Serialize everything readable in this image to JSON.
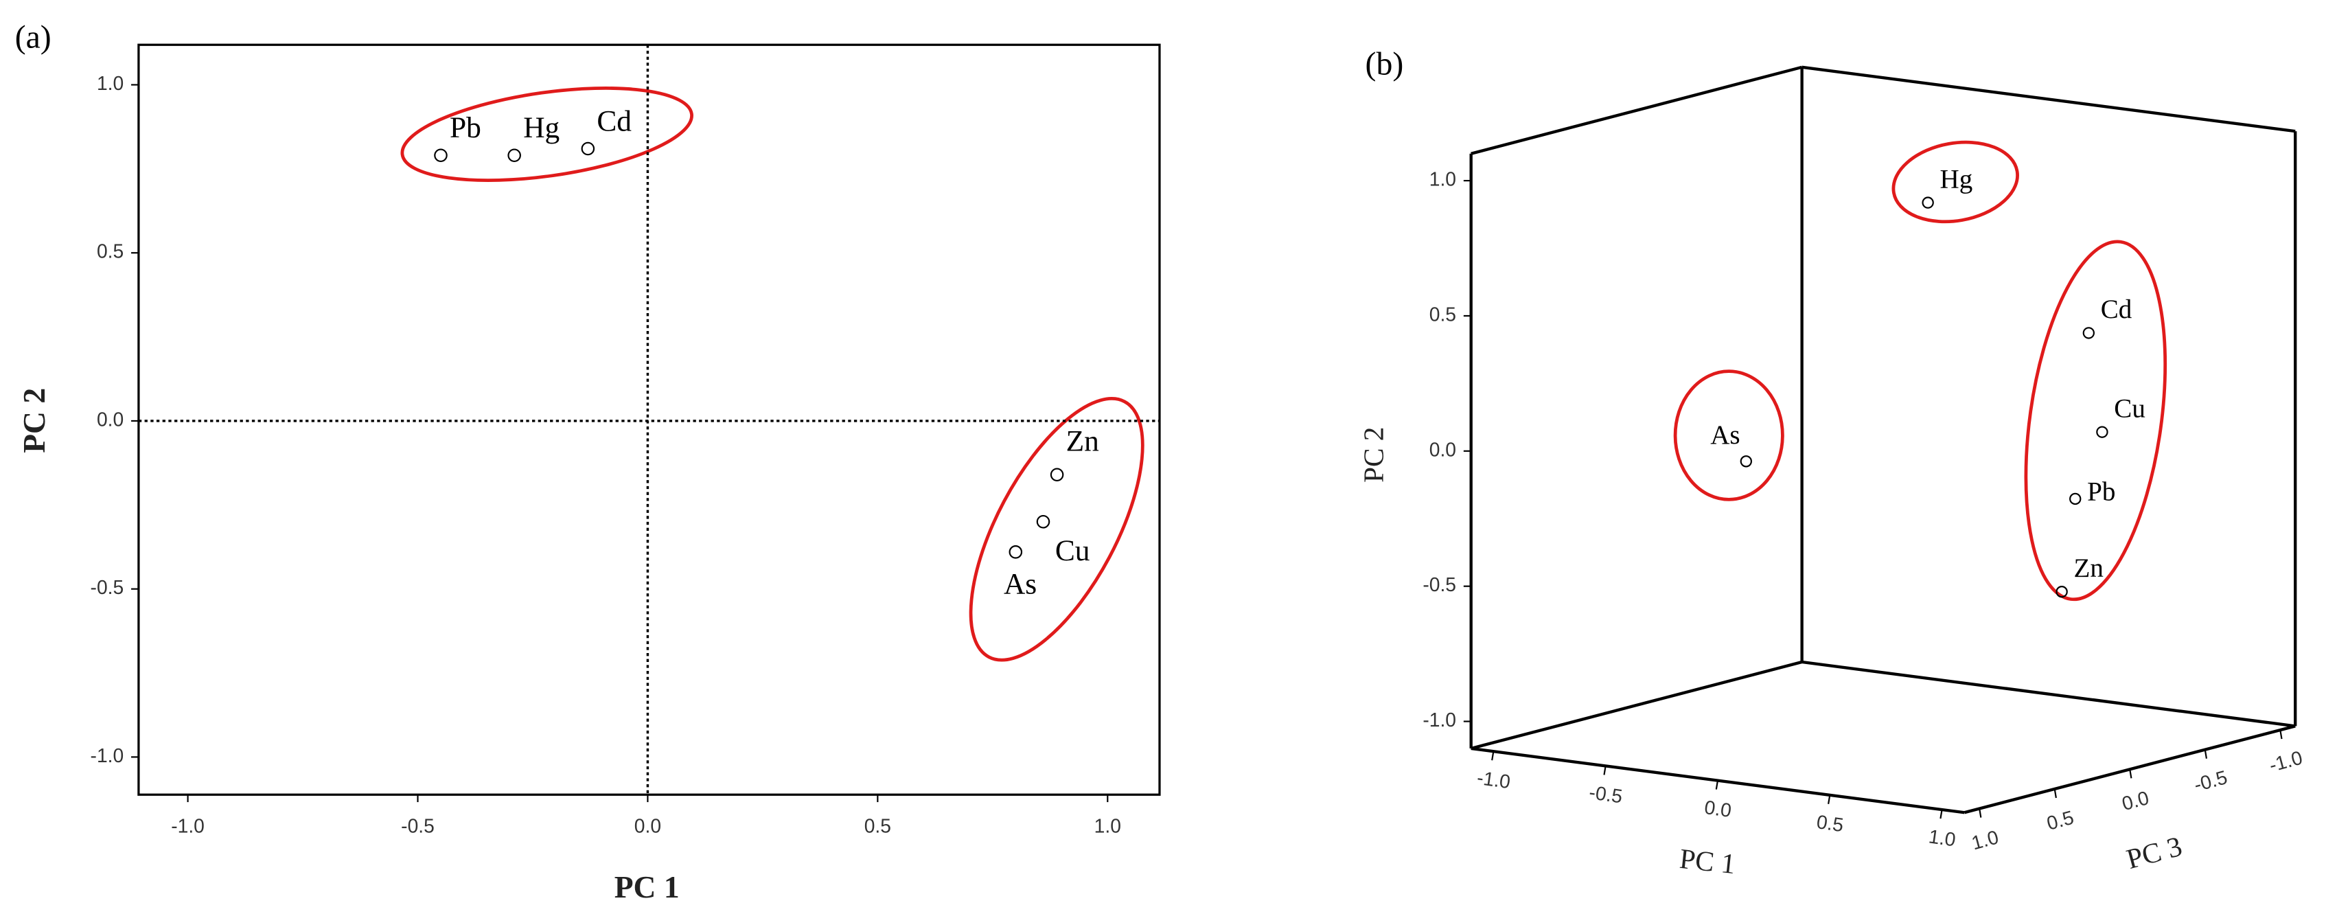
{
  "chart_data": [
    {
      "type": "scatter",
      "panel_label": "(a)",
      "x_label": "PC 1",
      "y_label": "PC 2",
      "labels": [
        "Pb",
        "Hg",
        "Cd",
        "Zn",
        "Cu",
        "As"
      ],
      "x": [
        -0.45,
        -0.29,
        -0.13,
        0.89,
        0.86,
        0.8
      ],
      "y": [
        0.79,
        0.79,
        0.81,
        -0.16,
        -0.3,
        -0.39
      ],
      "xlim": [
        -1.107,
        1.113
      ],
      "ylim": [
        -1.112,
        1.119
      ],
      "xticks": [
        {
          "value": -1,
          "label": "-1.0"
        },
        {
          "value": -0.5,
          "label": "-0.5"
        },
        {
          "value": 0,
          "label": "0.0"
        },
        {
          "value": 0.5,
          "label": "0.5"
        },
        {
          "value": 1,
          "label": "1.0"
        }
      ],
      "yticks": [
        {
          "value": -1,
          "label": "-1.0"
        },
        {
          "value": -0.5,
          "label": "-0.5"
        },
        {
          "value": 0,
          "label": "0.0"
        },
        {
          "value": 0.5,
          "label": "0.5"
        },
        {
          "value": 1,
          "label": "1.0"
        }
      ],
      "zero_lines": true,
      "marker_color": "#000000"
    },
    {
      "type": "scatter3d",
      "panel_label": "(b)",
      "x_label": "PC 1",
      "y_label": "PC 2",
      "z_label": "PC 3",
      "labels": [
        "Hg",
        "Cd",
        "Cu",
        "Pb",
        "Zn",
        "As"
      ],
      "x": [
        -0.29,
        0.38,
        0.44,
        0.32,
        0.26,
        -0.41
      ],
      "y": [
        0.74,
        0.32,
        -0.04,
        -0.3,
        -0.65,
        -0.08
      ],
      "z": [
        -0.73,
        -0.8,
        -0.8,
        -0.8,
        -0.8,
        0.3
      ],
      "xlim": [
        -1.1,
        1.1
      ],
      "ylim": [
        -1.1,
        1.1
      ],
      "zlim": [
        -1.1,
        1.1
      ],
      "xticks": [
        {
          "value": -1,
          "label": "-1.0"
        },
        {
          "value": -0.5,
          "label": "-0.5"
        },
        {
          "value": 0,
          "label": "0.0"
        },
        {
          "value": 0.5,
          "label": "0.5"
        },
        {
          "value": 1,
          "label": "1.0"
        }
      ],
      "yticks": [
        {
          "value": -1,
          "label": "-1.0"
        },
        {
          "value": -0.5,
          "label": "-0.5"
        },
        {
          "value": 0,
          "label": "0.0"
        },
        {
          "value": 0.5,
          "label": "0.5"
        },
        {
          "value": 1,
          "label": "1.0"
        }
      ],
      "zticks": [
        {
          "value": -1,
          "label": "-1.0"
        },
        {
          "value": -0.5,
          "label": "-0.5"
        },
        {
          "value": 0,
          "label": "0.0"
        },
        {
          "value": 0.5,
          "label": "0.5"
        },
        {
          "value": 1,
          "label": "1.0"
        }
      ],
      "marker_color": "#000000"
    }
  ]
}
